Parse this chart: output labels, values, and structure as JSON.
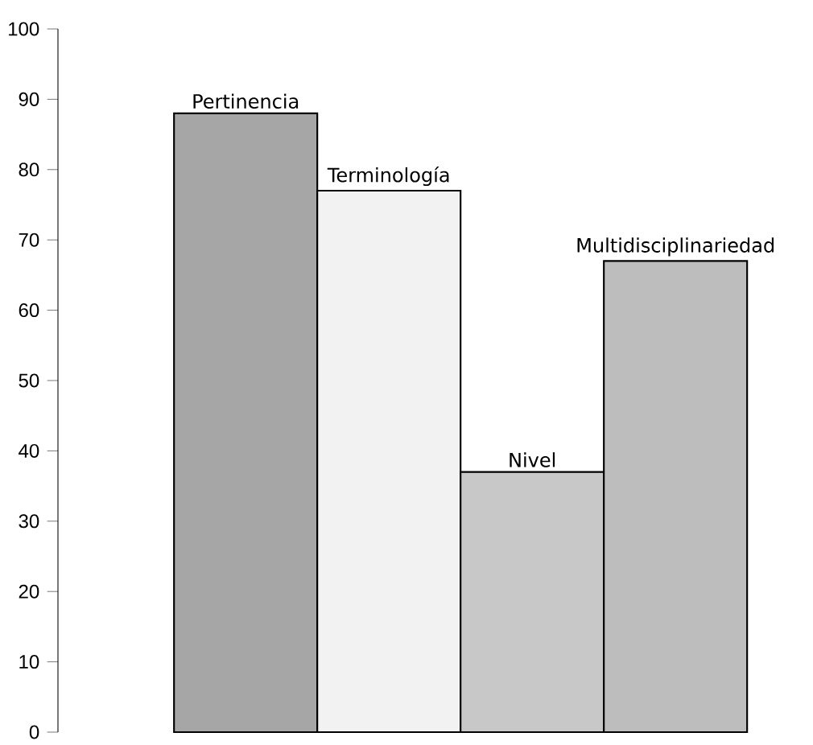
{
  "chart_data": {
    "type": "bar",
    "categories": [
      "Pertinencia",
      "Terminología",
      "Nivel",
      "Multidisciplinariedad"
    ],
    "values": [
      88,
      77,
      37,
      67
    ],
    "colors": [
      "#a6a6a6",
      "#f2f2f2",
      "#c8c8c8",
      "#bdbdbd"
    ],
    "ylim": [
      0,
      100
    ],
    "yticks": [
      0,
      10,
      20,
      30,
      40,
      50,
      60,
      70,
      80,
      90,
      100
    ]
  }
}
